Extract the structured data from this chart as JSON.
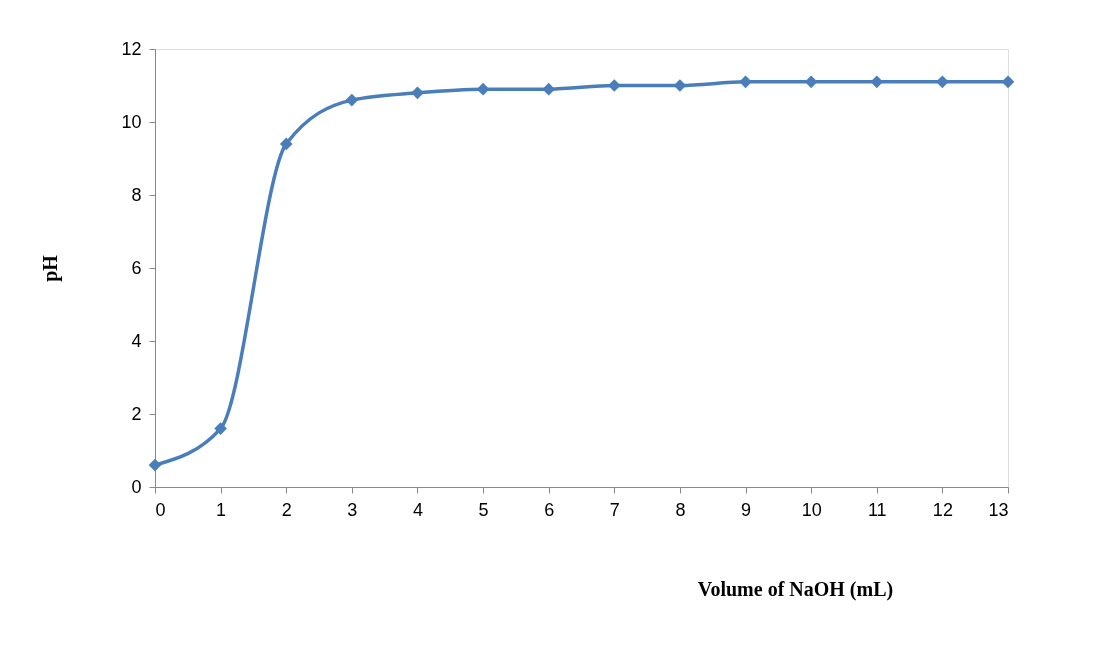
{
  "chart_data": {
    "type": "line",
    "xlabel": "Volume of NaOH (mL)",
    "ylabel": "pH",
    "x": [
      0,
      1,
      2,
      3,
      4,
      5,
      6,
      7,
      8,
      9,
      10,
      11,
      12,
      13
    ],
    "series": [
      {
        "color": "#4a7ebb",
        "values": [
          0.6,
          1.6,
          9.4,
          10.6,
          10.8,
          10.9,
          10.9,
          11.0,
          11.0,
          11.1,
          11.1,
          11.1,
          11.1,
          11.1
        ]
      }
    ],
    "xlim": [
      0,
      13
    ],
    "xticks": [
      0,
      1,
      2,
      3,
      4,
      5,
      6,
      7,
      8,
      9,
      10,
      11,
      12,
      13
    ],
    "ylim": [
      0,
      12
    ],
    "yticks": [
      0,
      2,
      4,
      6,
      8,
      10,
      12
    ],
    "marker": "diamond",
    "line_style": "solid",
    "grid": false,
    "legend": false
  }
}
